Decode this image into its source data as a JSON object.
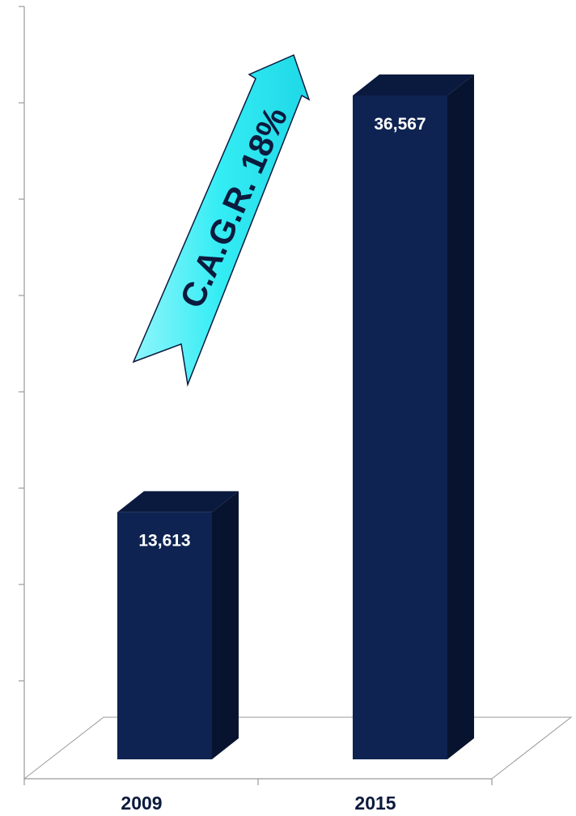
{
  "chart_data": {
    "type": "bar",
    "categories": [
      "2009",
      "2015"
    ],
    "values": [
      13613,
      36567
    ],
    "value_labels": [
      "13,613",
      "36,567"
    ],
    "title": "",
    "xlabel": "",
    "ylabel": "",
    "ylim": [
      0,
      40000
    ],
    "y_tick_step": 5000,
    "y_tick_labels_shown": false,
    "grid": false,
    "legend": "none",
    "style": "3d-bar",
    "annotation": "C.A.G.R. 18%",
    "colors": {
      "bar_front": "#0e2351",
      "bar_side": "#08142f",
      "bar_top": "#0a1a3e",
      "arrow_fill": "#33ecf4",
      "arrow_stroke": "#0b1a3d",
      "axis": "#9a9a9a",
      "label_text": "#ffffff",
      "category_text": "#0b1a3d"
    }
  }
}
